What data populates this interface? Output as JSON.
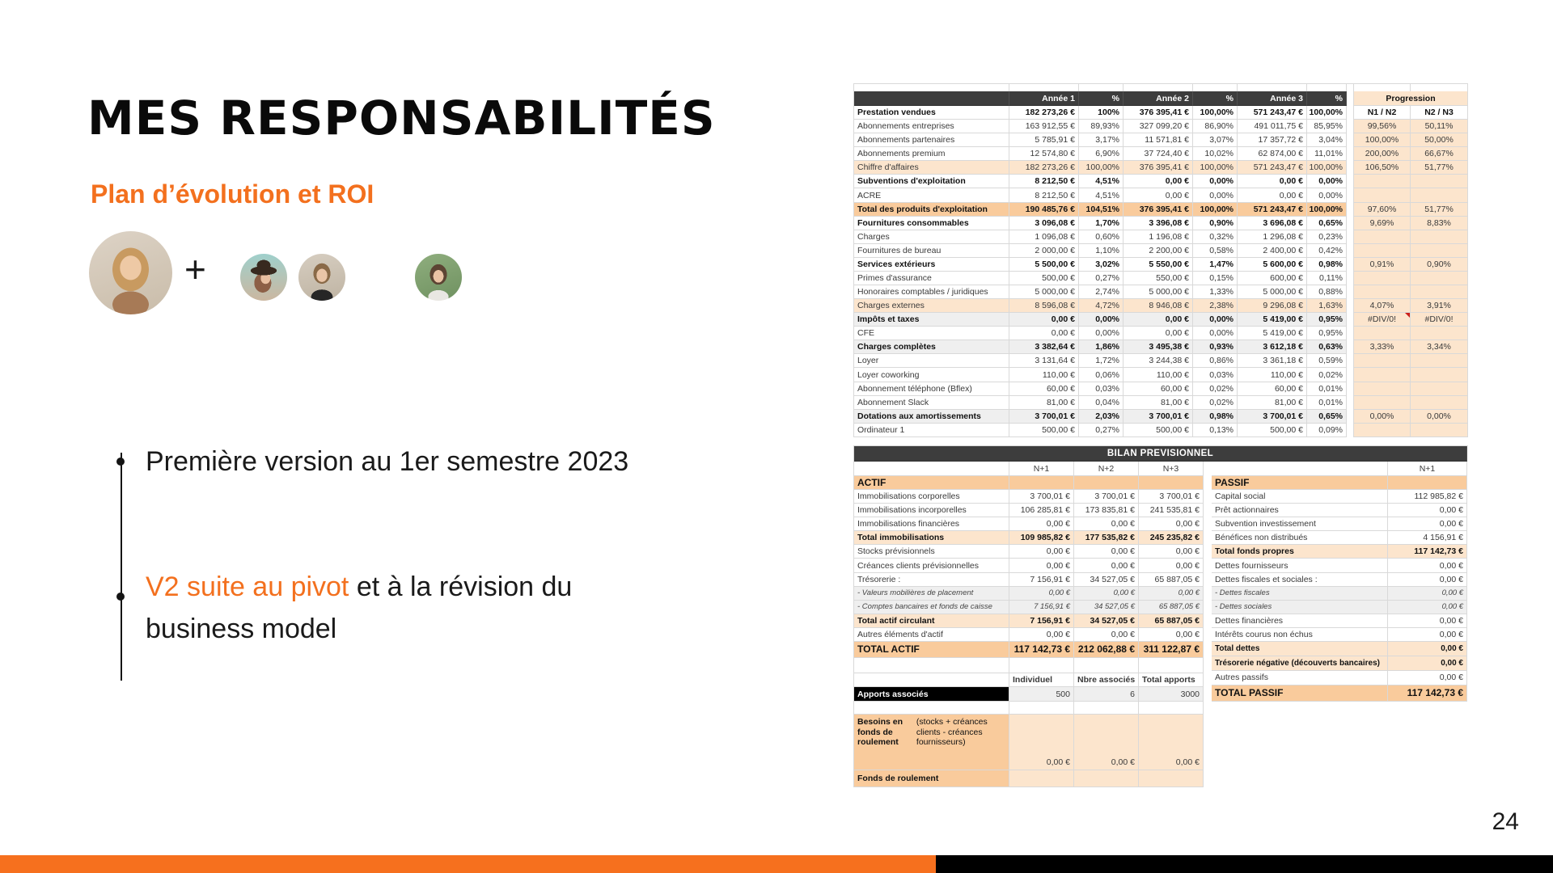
{
  "slide": {
    "title": "MES RESPONSABILITÉS",
    "subtitle": "Plan d’évolution et ROI",
    "plus_sign": "+",
    "page_number": "24",
    "bullets": [
      {
        "segments": [
          {
            "text": "Première version au 1er semestre 2023",
            "color": "dark"
          }
        ]
      },
      {
        "segments": [
          {
            "text": "V2 suite au pivot",
            "color": "orange"
          },
          {
            "text": " et à la révision du business model",
            "color": "dark"
          }
        ]
      }
    ]
  },
  "colors": {
    "accent_orange": "#F3701E",
    "footer_orange": "#F6701E",
    "footer_black": "#000000",
    "table_header_dark": "#3D3D3D",
    "peach_light": "#FCE5CD",
    "peach_mid": "#F9CB9C",
    "row_gray": "#EFEFEF",
    "error_marker_red": "#CC1F1A"
  },
  "table1": {
    "columns": [
      "Année 1",
      "%",
      "Année 2",
      "%",
      "Année 3",
      "%"
    ],
    "progression_header": "Progression",
    "progression_columns": [
      "N1 / N2",
      "N2 / N3"
    ],
    "rows": [
      {
        "label": "Prestation vendues",
        "style": "bold",
        "cells": [
          "182 273,26 €",
          "100%",
          "376 395,41 €",
          "100,00%",
          "571 243,47 €",
          "100,00%"
        ],
        "progHead": true
      },
      {
        "label": "Abonnements entreprises",
        "style": "plain",
        "cells": [
          "163 912,55 €",
          "89,93%",
          "327 099,20 €",
          "86,90%",
          "491 011,75 €",
          "85,95%"
        ],
        "prog": [
          "99,56%",
          "50,11%"
        ]
      },
      {
        "label": "Abonnements partenaires",
        "style": "plain",
        "cells": [
          "5 785,91 €",
          "3,17%",
          "11 571,81 €",
          "3,07%",
          "17 357,72 €",
          "3,04%"
        ],
        "prog": [
          "100,00%",
          "50,00%"
        ]
      },
      {
        "label": "Abonnements premium",
        "style": "plain",
        "cells": [
          "12 574,80 €",
          "6,90%",
          "37 724,40 €",
          "10,02%",
          "62 874,00 €",
          "11,01%"
        ],
        "prog": [
          "200,00%",
          "66,67%"
        ]
      },
      {
        "label": "Chiffre d'affaires",
        "style": "peach",
        "cells": [
          "182 273,26 €",
          "100,00%",
          "376 395,41 €",
          "100,00%",
          "571 243,47 €",
          "100,00%"
        ],
        "prog": [
          "106,50%",
          "51,77%"
        ]
      },
      {
        "label": "Subventions d'exploitation",
        "style": "bold",
        "cells": [
          "8 212,50 €",
          "4,51%",
          "0,00 €",
          "0,00%",
          "0,00 €",
          "0,00%"
        ],
        "prog": [
          "",
          ""
        ]
      },
      {
        "label": "ACRE",
        "style": "plain",
        "cells": [
          "8 212,50 €",
          "4,51%",
          "0,00 €",
          "0,00%",
          "0,00 €",
          "0,00%"
        ],
        "prog": [
          "",
          ""
        ]
      },
      {
        "label": "Total des produits d'exploitation",
        "style": "peachmid",
        "cells": [
          "190 485,76 €",
          "104,51%",
          "376 395,41 €",
          "100,00%",
          "571 243,47 €",
          "100,00%"
        ],
        "prog": [
          "97,60%",
          "51,77%"
        ]
      },
      {
        "label": "Fournitures consommables",
        "style": "bold",
        "cells": [
          "3 096,08 €",
          "1,70%",
          "3 396,08 €",
          "0,90%",
          "3 696,08 €",
          "0,65%"
        ],
        "prog": [
          "9,69%",
          "8,83%"
        ]
      },
      {
        "label": "Charges",
        "style": "plain",
        "cells": [
          "1 096,08 €",
          "0,60%",
          "1 196,08 €",
          "0,32%",
          "1 296,08 €",
          "0,23%"
        ],
        "prog": [
          "",
          ""
        ]
      },
      {
        "label": "Fournitures de bureau",
        "style": "plain",
        "cells": [
          "2 000,00 €",
          "1,10%",
          "2 200,00 €",
          "0,58%",
          "2 400,00 €",
          "0,42%"
        ],
        "prog": [
          "",
          ""
        ]
      },
      {
        "label": "Services extérieurs",
        "style": "bold",
        "cells": [
          "5 500,00 €",
          "3,02%",
          "5 550,00 €",
          "1,47%",
          "5 600,00 €",
          "0,98%"
        ],
        "prog": [
          "0,91%",
          "0,90%"
        ]
      },
      {
        "label": "Primes d'assurance",
        "style": "plain",
        "cells": [
          "500,00 €",
          "0,27%",
          "550,00 €",
          "0,15%",
          "600,00 €",
          "0,11%"
        ],
        "prog": [
          "",
          ""
        ]
      },
      {
        "label": "Honoraires comptables / juridiques",
        "style": "plain",
        "cells": [
          "5 000,00 €",
          "2,74%",
          "5 000,00 €",
          "1,33%",
          "5 000,00 €",
          "0,88%"
        ],
        "prog": [
          "",
          ""
        ]
      },
      {
        "label": "Charges externes",
        "style": "peach",
        "cells": [
          "8 596,08 €",
          "4,72%",
          "8 946,08 €",
          "2,38%",
          "9 296,08 €",
          "1,63%"
        ],
        "prog": [
          "4,07%",
          "3,91%"
        ]
      },
      {
        "label": "Impôts et taxes",
        "style": "gray",
        "cells": [
          "0,00 €",
          "0,00%",
          "0,00 €",
          "0,00%",
          "5 419,00 €",
          "0,95%"
        ],
        "prog": [
          "#DIV/0!",
          "#DIV/0!"
        ],
        "note": true
      },
      {
        "label": "CFE",
        "style": "plain",
        "cells": [
          "0,00 €",
          "0,00%",
          "0,00 €",
          "0,00%",
          "5 419,00 €",
          "0,95%"
        ],
        "prog": [
          "",
          ""
        ]
      },
      {
        "label": "Charges complètes",
        "style": "gray",
        "cells": [
          "3 382,64 €",
          "1,86%",
          "3 495,38 €",
          "0,93%",
          "3 612,18 €",
          "0,63%"
        ],
        "prog": [
          "3,33%",
          "3,34%"
        ]
      },
      {
        "label": "Loyer",
        "style": "plain",
        "cells": [
          "3 131,64 €",
          "1,72%",
          "3 244,38 €",
          "0,86%",
          "3 361,18 €",
          "0,59%"
        ],
        "prog": [
          "",
          ""
        ]
      },
      {
        "label": "Loyer coworking",
        "style": "plain",
        "cells": [
          "110,00 €",
          "0,06%",
          "110,00 €",
          "0,03%",
          "110,00 €",
          "0,02%"
        ],
        "prog": [
          "",
          ""
        ]
      },
      {
        "label": "Abonnement téléphone (Bflex)",
        "style": "plain",
        "cells": [
          "60,00 €",
          "0,03%",
          "60,00 €",
          "0,02%",
          "60,00 €",
          "0,01%"
        ],
        "prog": [
          "",
          ""
        ]
      },
      {
        "label": "Abonnement Slack",
        "style": "plain",
        "cells": [
          "81,00 €",
          "0,04%",
          "81,00 €",
          "0,02%",
          "81,00 €",
          "0,01%"
        ],
        "prog": [
          "",
          ""
        ]
      },
      {
        "label": "Dotations aux amortissements",
        "style": "gray",
        "cells": [
          "3 700,01 €",
          "2,03%",
          "3 700,01 €",
          "0,98%",
          "3 700,01 €",
          "0,65%"
        ],
        "prog": [
          "0,00%",
          "0,00%"
        ]
      },
      {
        "label": "Ordinateur 1",
        "style": "plain",
        "cells": [
          "500,00 €",
          "0,27%",
          "500,00 €",
          "0,13%",
          "500,00 €",
          "0,09%"
        ],
        "prog": [
          "",
          ""
        ]
      }
    ]
  },
  "bilan": {
    "title": "BILAN PREVISIONNEL",
    "actif": {
      "columns": [
        "N+1",
        "N+2",
        "N+3"
      ],
      "rows": [
        {
          "label": "ACTIF",
          "style": "section",
          "cells": [
            "",
            "",
            ""
          ]
        },
        {
          "label": "Immobilisations corporelles",
          "style": "plain",
          "cells": [
            "3 700,01 €",
            "3 700,01 €",
            "3 700,01 €"
          ]
        },
        {
          "label": "Immobilisations incorporelles",
          "style": "plain",
          "cells": [
            "106 285,81 €",
            "173 835,81 €",
            "241 535,81 €"
          ]
        },
        {
          "label": "Immobilisations financières",
          "style": "plain",
          "cells": [
            "0,00 €",
            "0,00 €",
            "0,00 €"
          ]
        },
        {
          "label": "Total immobilisations",
          "style": "total",
          "cells": [
            "109 985,82 €",
            "177 535,82 €",
            "245 235,82 €"
          ]
        },
        {
          "label": "Stocks prévisionnels",
          "style": "plain",
          "cells": [
            "0,00 €",
            "0,00 €",
            "0,00 €"
          ]
        },
        {
          "label": "Créances clients prévisionnelles",
          "style": "plain",
          "cells": [
            "0,00 €",
            "0,00 €",
            "0,00 €"
          ]
        },
        {
          "label": "Trésorerie :",
          "style": "plain",
          "cells": [
            "7 156,91 €",
            "34 527,05 €",
            "65 887,05 €"
          ]
        },
        {
          "label": "- Valeurs mobilières de placement",
          "style": "sub",
          "cells": [
            "0,00 €",
            "0,00 €",
            "0,00 €"
          ]
        },
        {
          "label": "- Comptes bancaires et fonds de caisse",
          "style": "sub",
          "cells": [
            "7 156,91 €",
            "34 527,05 €",
            "65 887,05 €"
          ]
        },
        {
          "label": "Total actif circulant",
          "style": "total",
          "cells": [
            "7 156,91 €",
            "34 527,05 €",
            "65 887,05 €"
          ]
        },
        {
          "label": "Autres éléments d'actif",
          "style": "plain",
          "cells": [
            "0,00 €",
            "0,00 €",
            "0,00 €"
          ]
        },
        {
          "label": "TOTAL ACTIF",
          "style": "grand",
          "cells": [
            "117 142,73 €",
            "212 062,88 €",
            "311 122,87 €"
          ]
        }
      ]
    },
    "passif": {
      "columns": [
        "N+1"
      ],
      "rows": [
        {
          "label": "PASSIF",
          "style": "section",
          "cells": [
            ""
          ]
        },
        {
          "label": "Capital social",
          "style": "plain",
          "cells": [
            "112 985,82 €"
          ]
        },
        {
          "label": "Prêt actionnaires",
          "style": "plain",
          "cells": [
            "0,00 €"
          ]
        },
        {
          "label": "Subvention investissement",
          "style": "plain",
          "cells": [
            "0,00 €"
          ]
        },
        {
          "label": "Bénéfices non distribués",
          "style": "plain",
          "cells": [
            "4 156,91 €"
          ]
        },
        {
          "label": "Total fonds propres",
          "style": "total",
          "cells": [
            "117 142,73 €"
          ]
        },
        {
          "label": "Dettes fournisseurs",
          "style": "plain",
          "cells": [
            "0,00 €"
          ]
        },
        {
          "label": "Dettes fiscales et sociales :",
          "style": "plain",
          "cells": [
            "0,00 €"
          ]
        },
        {
          "label": "- Dettes fiscales",
          "style": "sub",
          "cells": [
            "0,00 €"
          ]
        },
        {
          "label": "- Dettes sociales",
          "style": "sub",
          "cells": [
            "0,00 €"
          ]
        },
        {
          "label": "Dettes financières",
          "style": "plain",
          "cells": [
            "0,00 €"
          ]
        },
        {
          "label": "Intérêts courus non échus",
          "style": "plain",
          "cells": [
            "0,00 €"
          ]
        },
        {
          "label": "Total dettes",
          "style": "total2",
          "cells": [
            "0,00 €"
          ]
        },
        {
          "label": "Trésorerie négative (découverts bancaires)",
          "style": "total2",
          "cells": [
            "0,00 €"
          ]
        },
        {
          "label": "Autres passifs",
          "style": "plain",
          "cells": [
            "0,00 €"
          ]
        },
        {
          "label": "TOTAL PASSIF",
          "style": "grand",
          "cells": [
            "117 142,73 €"
          ]
        }
      ]
    },
    "apports": {
      "columns": [
        "Individuel",
        "Nbre associés",
        "Total apports"
      ],
      "row_label": "Apports associés",
      "values": [
        "500",
        "6",
        "3000"
      ]
    },
    "besoins": {
      "label_bold": "Besoins en fonds de roulement",
      "label_rest": " (stocks + créances clients - créances fournisseurs)",
      "values": [
        "0,00 €",
        "0,00 €",
        "0,00 €"
      ]
    },
    "fonds": {
      "label": "Fonds de roulement"
    }
  }
}
